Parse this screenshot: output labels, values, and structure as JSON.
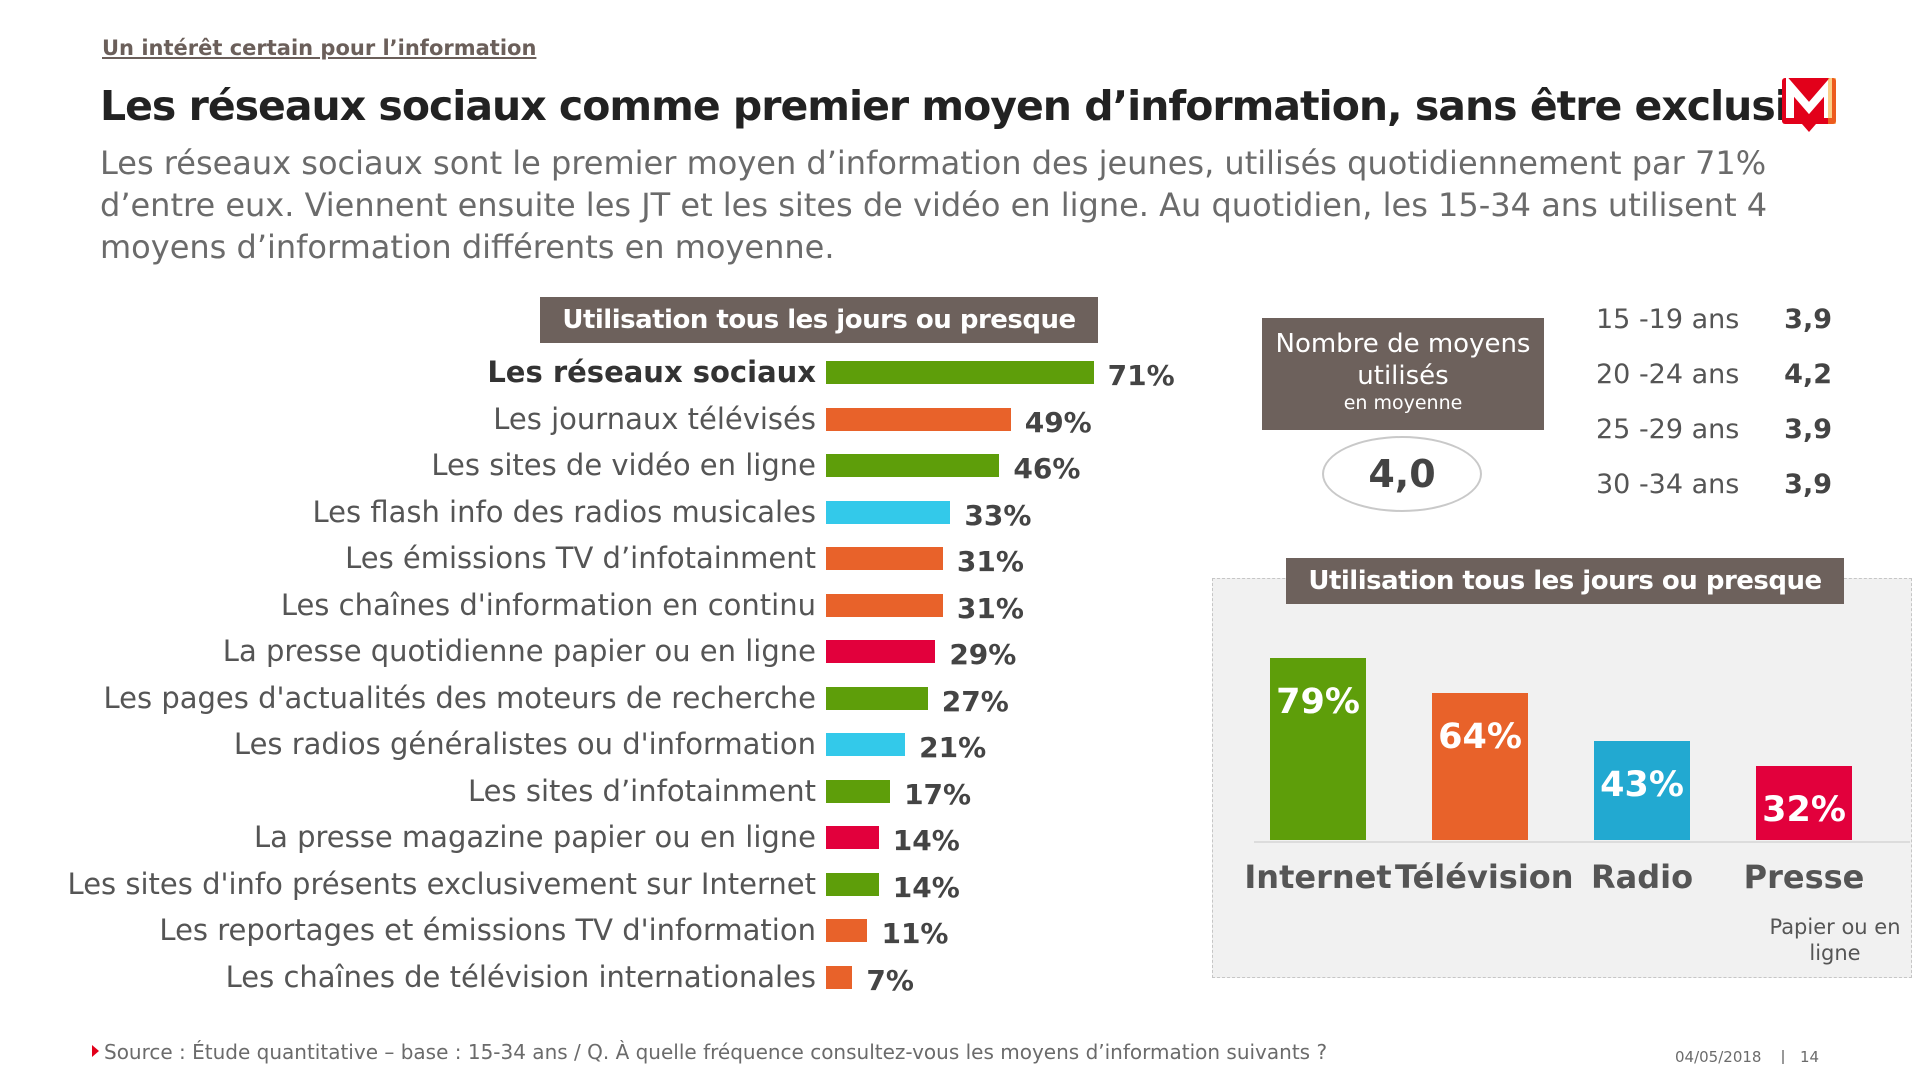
{
  "header": {
    "kicker": "Un intérêt certain pour l’information",
    "title": "Les réseaux sociaux comme premier moyen d’information, sans être exclusif",
    "subtitle": "Les réseaux sociaux sont le premier moyen d’information des jeunes, utilisés quotidiennement par 71% d’entre eux. Viennent ensuite les JT et les sites de vidéo en ligne. Au quotidien, les 15-34 ans utilisent 4 moyens d’information différents en moyenne.",
    "logo_text": "M",
    "logo_color": "#e2001a"
  },
  "colors": {
    "green": "#5e9e0a",
    "orange": "#e8622a",
    "cyan": "#33c9ea",
    "red": "#e2003c",
    "blue": "#22a9d1",
    "header_bg": "#6d615c"
  },
  "chart_data": [
    {
      "type": "bar",
      "orientation": "horizontal",
      "title": "Utilisation tous les jours ou presque",
      "categories": [
        "Les réseaux sociaux",
        "Les journaux télévisés",
        "Les sites de vidéo en ligne",
        "Les flash info des radios musicales",
        "Les émissions TV d’infotainment",
        "Les chaînes d'information en continu",
        "La presse quotidienne papier ou en ligne",
        "Les pages d'actualités des moteurs de recherche",
        "Les radios généralistes ou d'information",
        "Les sites d’infotainment",
        "La presse magazine papier ou en ligne",
        "Les sites d'info présents exclusivement sur Internet",
        "Les reportages et émissions TV d'information",
        "Les chaînes de télévision internationales"
      ],
      "values": [
        71,
        49,
        46,
        33,
        31,
        31,
        29,
        27,
        21,
        17,
        14,
        14,
        11,
        7
      ],
      "value_labels": [
        "71%",
        "49%",
        "46%",
        "33%",
        "31%",
        "31%",
        "29%",
        "27%",
        "21%",
        "17%",
        "14%",
        "14%",
        "11%",
        "7%"
      ],
      "colors": [
        "#5e9e0a",
        "#e8622a",
        "#5e9e0a",
        "#33c9ea",
        "#e8622a",
        "#e8622a",
        "#e2003c",
        "#5e9e0a",
        "#33c9ea",
        "#5e9e0a",
        "#e2003c",
        "#5e9e0a",
        "#e8622a",
        "#e8622a"
      ],
      "bold_first": true
    },
    {
      "type": "bar",
      "title": "Utilisation tous les jours ou presque",
      "categories": [
        "Internet",
        "Télévision",
        "Radio",
        "Presse"
      ],
      "values": [
        79,
        64,
        43,
        32
      ],
      "value_labels": [
        "79%",
        "64%",
        "43%",
        "32%"
      ],
      "colors": [
        "#5e9e0a",
        "#e8622a",
        "#22a9d1",
        "#e2003c"
      ],
      "category_note": "Papier ou en ligne"
    },
    {
      "type": "table",
      "title": "Nombre de moyens utilisés",
      "subtitle": "en moyenne",
      "overall": "4,0",
      "rows": [
        {
          "age": "15 -19 ans",
          "value": "3,9"
        },
        {
          "age": "20 -24 ans",
          "value": "4,2"
        },
        {
          "age": "25 -29 ans",
          "value": "3,9"
        },
        {
          "age": "30 -34 ans",
          "value": "3,9"
        }
      ]
    }
  ],
  "footer": {
    "source": "Source : Étude quantitative – base : 15-34 ans / Q. À quelle fréquence consultez-vous les moyens d’information suivants ?",
    "date": "04/05/2018",
    "page": "14"
  }
}
